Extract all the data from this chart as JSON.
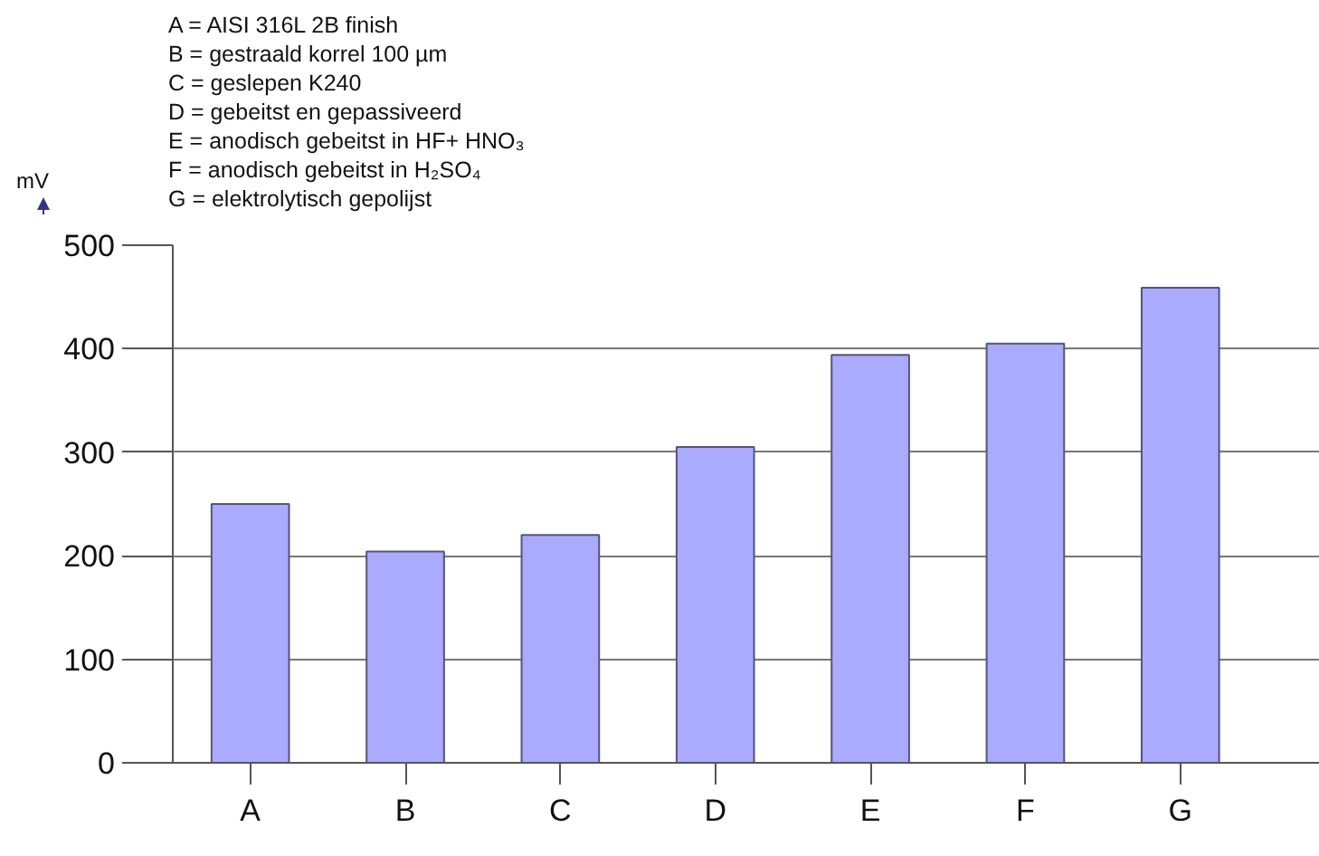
{
  "chart_data": {
    "type": "bar",
    "ylabel": "mV",
    "annotations": [
      "A = AISI 316L 2B finish",
      "B = gestraald korrel 100 µm",
      "C = geslepen K240",
      "D = gebeitst en gepassiveerd",
      "E = anodisch gebeitst in HF+ HNO₃",
      "F = anodisch gebeitst in H₂SO₄",
      "G = elektrolytisch gepolijst"
    ],
    "categories": [
      "A",
      "B",
      "C",
      "D",
      "E",
      "F",
      "G"
    ],
    "values": [
      250,
      204,
      220,
      305,
      394,
      405,
      459
    ],
    "color": "#aaaaff",
    "ylim": [
      0,
      500
    ],
    "yticks": [
      0,
      100,
      200,
      300,
      400,
      500
    ],
    "grid": "y"
  }
}
